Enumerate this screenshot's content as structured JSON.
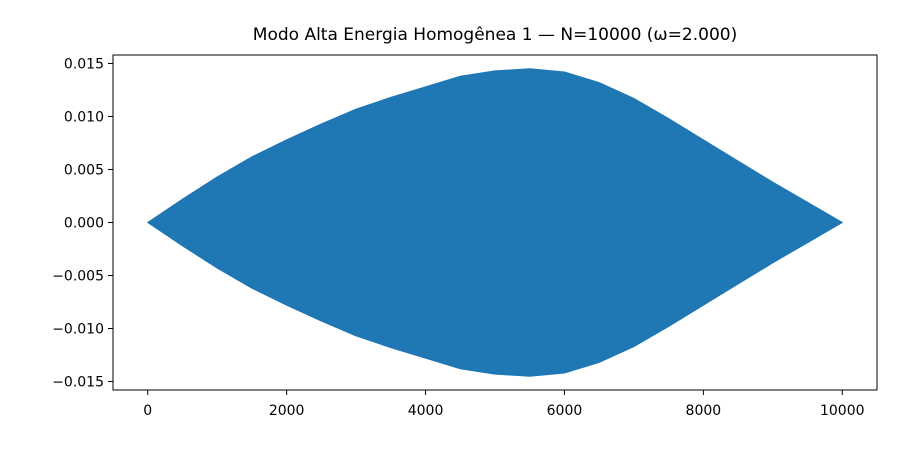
{
  "chart_data": {
    "type": "area",
    "title": "Modo Alta Energia Homogênea 1 — N=10000 (ω=2.000)",
    "xlabel": "",
    "ylabel": "",
    "xlim": [
      -500,
      10500
    ],
    "ylim": [
      -0.0158,
      0.0158
    ],
    "x_ticks": [
      0,
      2000,
      4000,
      6000,
      8000,
      10000
    ],
    "x_tick_labels": [
      "0",
      "2000",
      "4000",
      "6000",
      "8000",
      "10000"
    ],
    "y_ticks": [
      0.015,
      0.01,
      0.005,
      0.0,
      -0.005,
      -0.01,
      -0.015
    ],
    "y_tick_labels": [
      "0.015",
      "0.010",
      "0.005",
      "0.000",
      "−0.005",
      "−0.010",
      "−0.015"
    ],
    "grid": false,
    "series": [
      {
        "color": "#1f77b4",
        "x": [
          0,
          500,
          1000,
          1500,
          2000,
          2500,
          3000,
          3500,
          4000,
          4500,
          5000,
          5500,
          6000,
          6500,
          7000,
          7500,
          8000,
          8500,
          9000,
          9500,
          10000
        ],
        "upper": [
          0.0,
          0.0022,
          0.0043,
          0.0062,
          0.0078,
          0.0093,
          0.0107,
          0.0118,
          0.0128,
          0.0138,
          0.0143,
          0.0145,
          0.0142,
          0.0132,
          0.0117,
          0.0098,
          0.0078,
          0.0058,
          0.0038,
          0.0019,
          0.0
        ],
        "lower": [
          0.0,
          -0.0022,
          -0.0043,
          -0.0062,
          -0.0078,
          -0.0093,
          -0.0107,
          -0.0118,
          -0.0128,
          -0.0138,
          -0.0143,
          -0.0145,
          -0.0142,
          -0.0132,
          -0.0117,
          -0.0098,
          -0.0078,
          -0.0058,
          -0.0038,
          -0.0019,
          0.0
        ]
      }
    ]
  }
}
